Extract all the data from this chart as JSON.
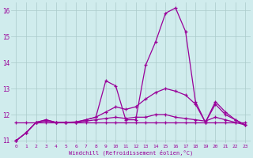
{
  "xlabel": "Windchill (Refroidissement éolien,°C)",
  "x": [
    0,
    1,
    2,
    3,
    4,
    5,
    6,
    7,
    8,
    9,
    10,
    11,
    12,
    13,
    14,
    15,
    16,
    17,
    18,
    19,
    20,
    21,
    22,
    23
  ],
  "line1": [
    11.0,
    11.3,
    11.7,
    11.8,
    11.7,
    11.7,
    11.7,
    11.8,
    11.9,
    13.3,
    13.1,
    11.8,
    11.8,
    13.9,
    14.8,
    15.9,
    16.1,
    15.2,
    12.5,
    11.7,
    12.5,
    12.1,
    11.8,
    11.6
  ],
  "line2": [
    11.0,
    11.3,
    11.7,
    11.75,
    11.7,
    11.7,
    11.7,
    11.75,
    11.8,
    11.85,
    11.9,
    11.85,
    11.9,
    11.9,
    12.0,
    12.0,
    11.9,
    11.85,
    11.8,
    11.75,
    11.9,
    11.8,
    11.7,
    11.6
  ],
  "line3": [
    11.7,
    11.7,
    11.7,
    11.7,
    11.7,
    11.7,
    11.7,
    11.7,
    11.7,
    11.7,
    11.7,
    11.7,
    11.7,
    11.7,
    11.7,
    11.7,
    11.7,
    11.7,
    11.7,
    11.7,
    11.7,
    11.7,
    11.7,
    11.7
  ],
  "line4": [
    11.0,
    11.3,
    11.7,
    11.8,
    11.7,
    11.7,
    11.72,
    11.8,
    11.9,
    12.1,
    12.3,
    12.2,
    12.3,
    12.6,
    12.85,
    13.0,
    12.9,
    12.75,
    12.4,
    11.7,
    12.4,
    12.0,
    11.8,
    11.6
  ],
  "color": "#990099",
  "bg_color": "#d0eced",
  "grid_color": "#aacaca",
  "ylim": [
    10.9,
    16.3
  ],
  "yticks": [
    11,
    12,
    13,
    14,
    15,
    16
  ],
  "xticks": [
    0,
    1,
    2,
    3,
    4,
    5,
    6,
    7,
    8,
    9,
    10,
    11,
    12,
    13,
    14,
    15,
    16,
    17,
    18,
    19,
    20,
    21,
    22,
    23
  ]
}
